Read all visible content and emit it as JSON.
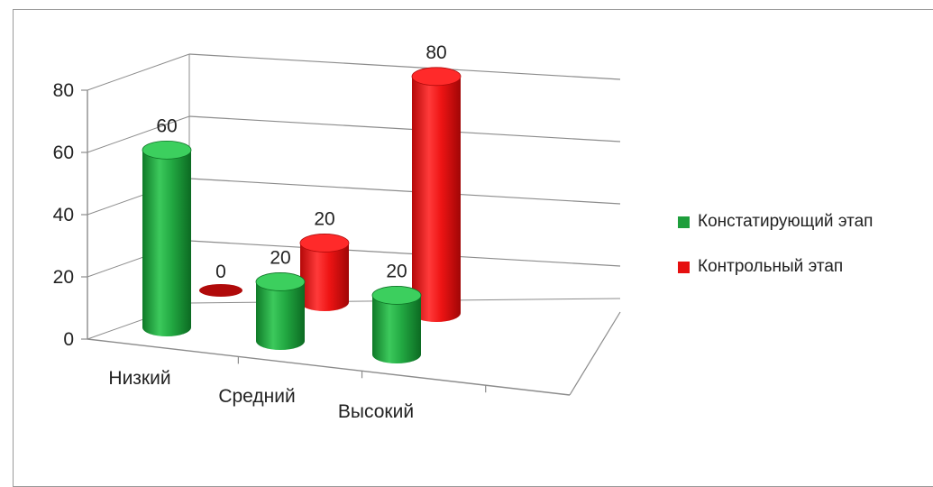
{
  "chart_data": {
    "type": "bar",
    "style": "3d-cylinder",
    "categories": [
      "Низкий",
      "Средний",
      "Высокий"
    ],
    "series": [
      {
        "name": "Констатирующий этап",
        "color": "#1e9e3c",
        "values": [
          60,
          20,
          20
        ]
      },
      {
        "name": "Контрольный этап",
        "color": "#e60f0f",
        "values": [
          0,
          20,
          80
        ]
      }
    ],
    "ylim": [
      0,
      80
    ],
    "yticks": [
      "0",
      "20",
      "40",
      "60",
      "80"
    ],
    "grid": true,
    "legend_position": "right",
    "data_labels": true
  }
}
